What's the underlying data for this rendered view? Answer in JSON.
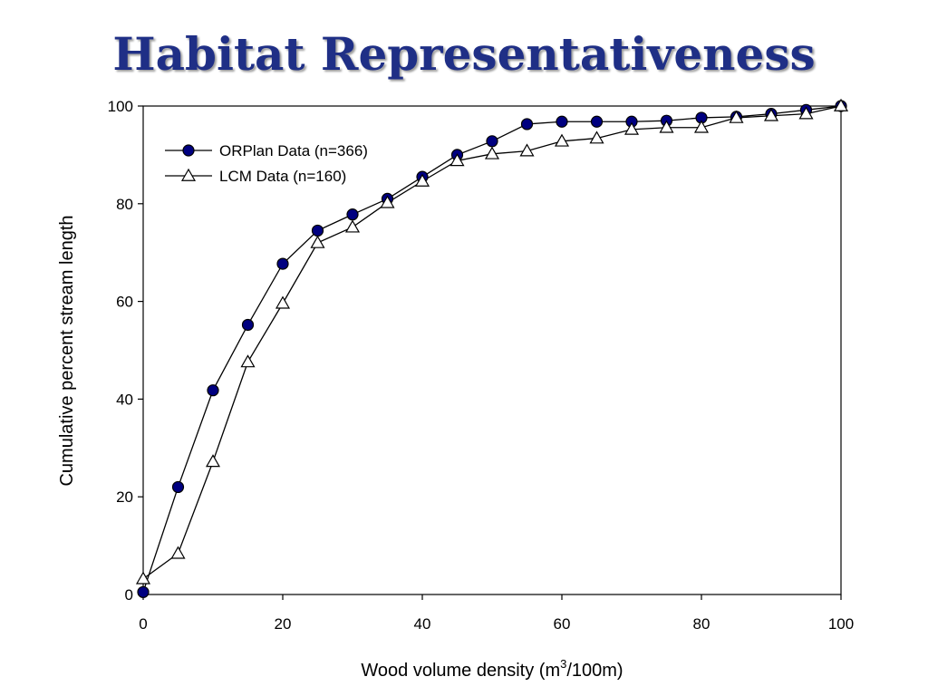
{
  "slide": {
    "title": "Habitat Representativeness"
  },
  "chart_data": {
    "type": "line",
    "title": "",
    "xlabel": "Wood volume density (m",
    "xlabel_sup": "3",
    "xlabel_tail": "/100m)",
    "ylabel": "Cumulative percent stream length",
    "xlim": [
      0,
      100
    ],
    "ylim": [
      0,
      100
    ],
    "xticks": [
      0,
      20,
      40,
      60,
      80,
      100
    ],
    "yticks": [
      0,
      20,
      40,
      60,
      80,
      100
    ],
    "grid": false,
    "legend_position": "top-left",
    "series": [
      {
        "name": "ORPlan Data (n=366)",
        "marker": "filled-circle",
        "color": "#000080",
        "x": [
          0,
          5,
          10,
          15,
          20,
          25,
          30,
          35,
          40,
          45,
          50,
          55,
          60,
          65,
          70,
          75,
          80,
          85,
          90,
          95,
          100
        ],
        "y": [
          0.5,
          22,
          41.8,
          55.2,
          67.7,
          74.5,
          77.8,
          81,
          85.5,
          90,
          92.8,
          96.3,
          96.8,
          96.8,
          96.8,
          97,
          97.6,
          97.8,
          98.4,
          99.2,
          100
        ]
      },
      {
        "name": "LCM Data (n=160)",
        "marker": "open-triangle",
        "color": "#ffffff",
        "x": [
          0,
          5,
          10,
          15,
          20,
          25,
          30,
          35,
          40,
          45,
          50,
          55,
          60,
          65,
          70,
          75,
          80,
          85,
          90,
          95,
          100
        ],
        "y": [
          3.2,
          8.4,
          27.2,
          47.6,
          59.6,
          72,
          75.2,
          80.2,
          84.6,
          88.8,
          90.2,
          90.8,
          92.8,
          93.4,
          95.2,
          95.6,
          95.6,
          97.6,
          98,
          98.4,
          100
        ]
      }
    ]
  }
}
